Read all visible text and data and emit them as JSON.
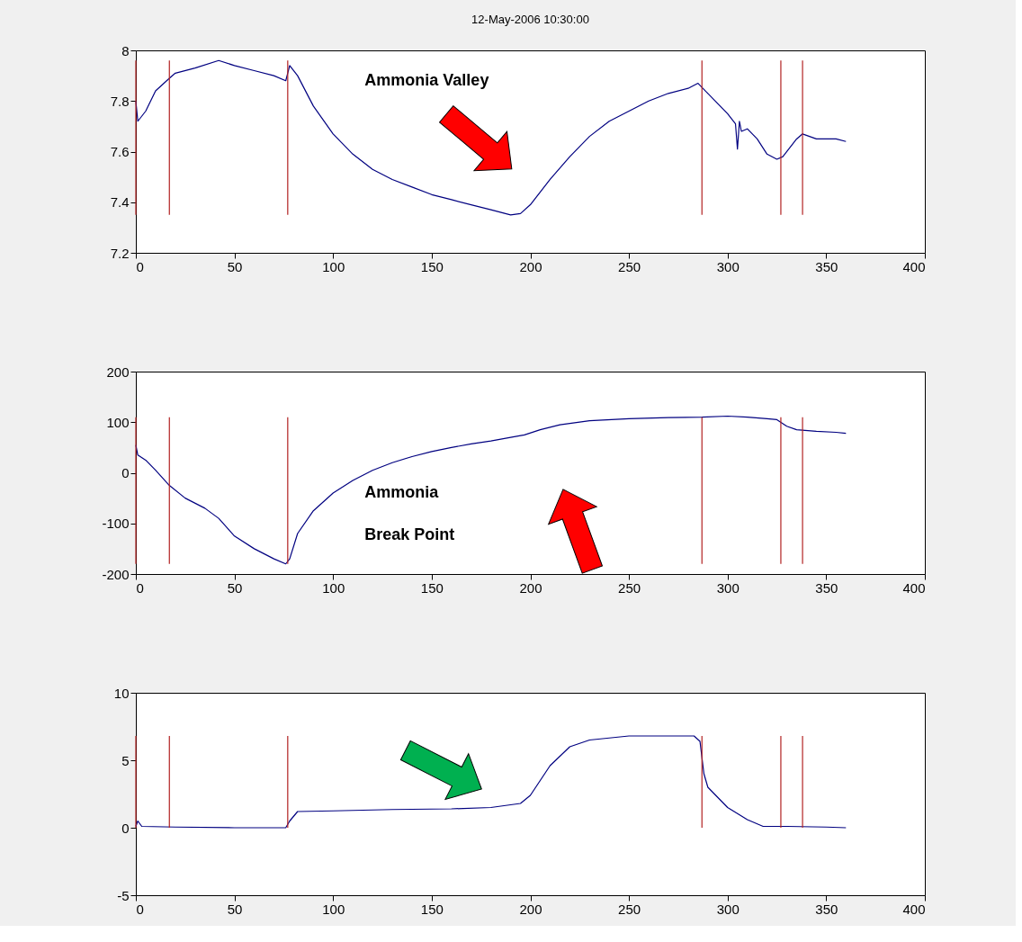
{
  "chart_data": [
    {
      "type": "line",
      "title": "12-May-2006 10:30:00",
      "annotations": [
        "Ammonia Valley"
      ],
      "xlim": [
        0,
        400
      ],
      "xticks": [
        0,
        50,
        100,
        150,
        200,
        250,
        300,
        350,
        400
      ],
      "ylim": [
        7.2,
        8
      ],
      "yticks": [
        7.2,
        7.4,
        7.6,
        7.8,
        8
      ],
      "grid": false,
      "series": [
        {
          "color": "#000080",
          "x": [
            0,
            1,
            5,
            10,
            17,
            20,
            30,
            42,
            50,
            60,
            70,
            76,
            78,
            82,
            90,
            100,
            110,
            120,
            130,
            140,
            150,
            160,
            170,
            180,
            190,
            195,
            200,
            210,
            220,
            230,
            240,
            250,
            260,
            270,
            280,
            285,
            290,
            300,
            304,
            305,
            306,
            307,
            310,
            315,
            320,
            325,
            328,
            335,
            338,
            345,
            355,
            360
          ],
          "values": [
            7.8,
            7.72,
            7.76,
            7.84,
            7.89,
            7.91,
            7.93,
            7.96,
            7.94,
            7.92,
            7.9,
            7.88,
            7.94,
            7.9,
            7.78,
            7.67,
            7.59,
            7.53,
            7.49,
            7.46,
            7.43,
            7.41,
            7.39,
            7.37,
            7.35,
            7.355,
            7.39,
            7.49,
            7.58,
            7.66,
            7.72,
            7.76,
            7.8,
            7.83,
            7.85,
            7.87,
            7.83,
            7.75,
            7.71,
            7.61,
            7.72,
            7.68,
            7.69,
            7.65,
            7.59,
            7.57,
            7.58,
            7.65,
            7.67,
            7.65,
            7.65,
            7.64
          ]
        }
      ],
      "ref_lines": [
        {
          "axis": "x",
          "value": 0,
          "color": "#b22222"
        },
        {
          "axis": "x",
          "value": 17,
          "color": "#b22222"
        },
        {
          "axis": "x",
          "value": 77,
          "color": "#b22222"
        },
        {
          "axis": "x",
          "value": 287,
          "color": "#b22222"
        },
        {
          "axis": "x",
          "value": 327,
          "color": "#b22222"
        },
        {
          "axis": "x",
          "value": 338,
          "color": "#b22222"
        }
      ]
    },
    {
      "type": "line",
      "annotations": [
        "Ammonia",
        "Break Point"
      ],
      "xlim": [
        0,
        400
      ],
      "xticks": [
        0,
        50,
        100,
        150,
        200,
        250,
        300,
        350,
        400
      ],
      "ylim": [
        -200,
        200
      ],
      "yticks": [
        -200,
        -100,
        0,
        100,
        200
      ],
      "grid": false,
      "series": [
        {
          "color": "#000080",
          "x": [
            0,
            1,
            5,
            10,
            17,
            25,
            35,
            42,
            50,
            60,
            70,
            76,
            78,
            82,
            90,
            100,
            110,
            120,
            130,
            140,
            150,
            160,
            170,
            180,
            190,
            197,
            205,
            215,
            230,
            250,
            270,
            287,
            300,
            310,
            320,
            325,
            330,
            335,
            345,
            355,
            360
          ],
          "values": [
            55,
            35,
            25,
            5,
            -25,
            -50,
            -70,
            -90,
            -125,
            -150,
            -170,
            -180,
            -170,
            -120,
            -75,
            -40,
            -15,
            5,
            20,
            32,
            42,
            50,
            57,
            63,
            70,
            75,
            85,
            95,
            103,
            107,
            109,
            110,
            112,
            110,
            107,
            105,
            92,
            85,
            82,
            80,
            78
          ]
        }
      ],
      "ref_lines": [
        {
          "axis": "x",
          "value": 0,
          "color": "#b22222"
        },
        {
          "axis": "x",
          "value": 17,
          "color": "#b22222"
        },
        {
          "axis": "x",
          "value": 77,
          "color": "#b22222"
        },
        {
          "axis": "x",
          "value": 287,
          "color": "#b22222"
        },
        {
          "axis": "x",
          "value": 327,
          "color": "#b22222"
        },
        {
          "axis": "x",
          "value": 338,
          "color": "#b22222"
        }
      ]
    },
    {
      "type": "line",
      "xlim": [
        0,
        400
      ],
      "xticks": [
        0,
        50,
        100,
        150,
        200,
        250,
        300,
        350,
        400
      ],
      "ylim": [
        -5,
        10
      ],
      "yticks": [
        -5,
        0,
        5,
        10
      ],
      "grid": false,
      "series": [
        {
          "color": "#000080",
          "x": [
            0,
            1,
            3,
            20,
            50,
            76,
            78,
            82,
            100,
            130,
            160,
            180,
            195,
            200,
            205,
            210,
            220,
            230,
            250,
            270,
            283,
            286,
            288,
            290,
            300,
            310,
            318,
            330,
            350,
            360
          ],
          "values": [
            0.1,
            0.5,
            0.1,
            0.05,
            0,
            0,
            0.5,
            1.2,
            1.25,
            1.35,
            1.4,
            1.5,
            1.8,
            2.4,
            3.5,
            4.6,
            6,
            6.5,
            6.8,
            6.8,
            6.8,
            6.4,
            4,
            3,
            1.5,
            0.6,
            0.1,
            0.1,
            0.05,
            0
          ]
        }
      ],
      "ref_lines": [
        {
          "axis": "x",
          "value": 0,
          "color": "#b22222"
        },
        {
          "axis": "x",
          "value": 17,
          "color": "#b22222"
        },
        {
          "axis": "x",
          "value": 77,
          "color": "#b22222"
        },
        {
          "axis": "x",
          "value": 287,
          "color": "#b22222"
        },
        {
          "axis": "x",
          "value": 327,
          "color": "#b22222"
        },
        {
          "axis": "x",
          "value": 338,
          "color": "#b22222"
        }
      ]
    }
  ]
}
